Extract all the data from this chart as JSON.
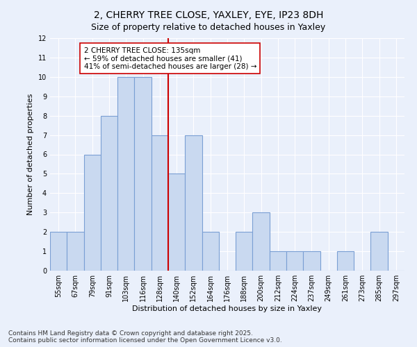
{
  "title": "2, CHERRY TREE CLOSE, YAXLEY, EYE, IP23 8DH",
  "subtitle": "Size of property relative to detached houses in Yaxley",
  "xlabel": "Distribution of detached houses by size in Yaxley",
  "ylabel": "Number of detached properties",
  "footnote": "Contains HM Land Registry data © Crown copyright and database right 2025.\nContains public sector information licensed under the Open Government Licence v3.0.",
  "bin_labels": [
    "55sqm",
    "67sqm",
    "79sqm",
    "91sqm",
    "103sqm",
    "116sqm",
    "128sqm",
    "140sqm",
    "152sqm",
    "164sqm",
    "176sqm",
    "188sqm",
    "200sqm",
    "212sqm",
    "224sqm",
    "237sqm",
    "249sqm",
    "261sqm",
    "273sqm",
    "285sqm",
    "297sqm"
  ],
  "bar_values": [
    2,
    2,
    6,
    8,
    10,
    10,
    7,
    5,
    7,
    2,
    0,
    2,
    3,
    1,
    1,
    1,
    0,
    1,
    0,
    2,
    0
  ],
  "bar_color": "#c9d9f0",
  "bar_edge_color": "#7a9fd4",
  "bar_edge_width": 0.8,
  "vline_color": "#cc0000",
  "annotation_text": "2 CHERRY TREE CLOSE: 135sqm\n← 59% of detached houses are smaller (41)\n41% of semi-detached houses are larger (28) →",
  "annotation_box_color": "#ffffff",
  "annotation_box_edge_color": "#cc0000",
  "ylim": [
    0,
    12
  ],
  "yticks": [
    0,
    1,
    2,
    3,
    4,
    5,
    6,
    7,
    8,
    9,
    10,
    11,
    12
  ],
  "bg_color": "#eaf0fb",
  "plot_bg_color": "#eaf0fb",
  "grid_color": "#ffffff",
  "title_fontsize": 10,
  "subtitle_fontsize": 9,
  "axis_label_fontsize": 8,
  "tick_fontsize": 7,
  "annotation_fontsize": 7.5,
  "footnote_fontsize": 6.5
}
